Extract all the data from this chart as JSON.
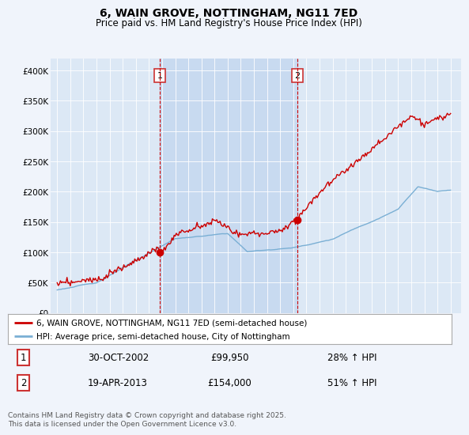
{
  "title": "6, WAIN GROVE, NOTTINGHAM, NG11 7ED",
  "subtitle": "Price paid vs. HM Land Registry's House Price Index (HPI)",
  "background_color": "#f0f4fb",
  "plot_bg_color": "#dce8f5",
  "shaded_region_color": "#c8daf0",
  "legend_entry1": "6, WAIN GROVE, NOTTINGHAM, NG11 7ED (semi-detached house)",
  "legend_entry2": "HPI: Average price, semi-detached house, City of Nottingham",
  "transaction1_date": "30-OCT-2002",
  "transaction1_price": "£99,950",
  "transaction1_hpi": "28% ↑ HPI",
  "transaction1_year": 2002.83,
  "transaction1_value": 99950,
  "transaction2_date": "19-APR-2013",
  "transaction2_price": "£154,000",
  "transaction2_hpi": "51% ↑ HPI",
  "transaction2_year": 2013.3,
  "transaction2_value": 154000,
  "footer": "Contains HM Land Registry data © Crown copyright and database right 2025.\nThis data is licensed under the Open Government Licence v3.0.",
  "red_color": "#cc0000",
  "blue_color": "#7aafd4",
  "dashed_color": "#cc0000",
  "ylim_max": 420000,
  "ylim_min": 0,
  "xlim_min": 1994.5,
  "xlim_max": 2025.8,
  "yticks": [
    0,
    50000,
    100000,
    150000,
    200000,
    250000,
    300000,
    350000,
    400000
  ],
  "ytick_labels": [
    "£0",
    "£50K",
    "£100K",
    "£150K",
    "£200K",
    "£250K",
    "£300K",
    "£350K",
    "£400K"
  ]
}
